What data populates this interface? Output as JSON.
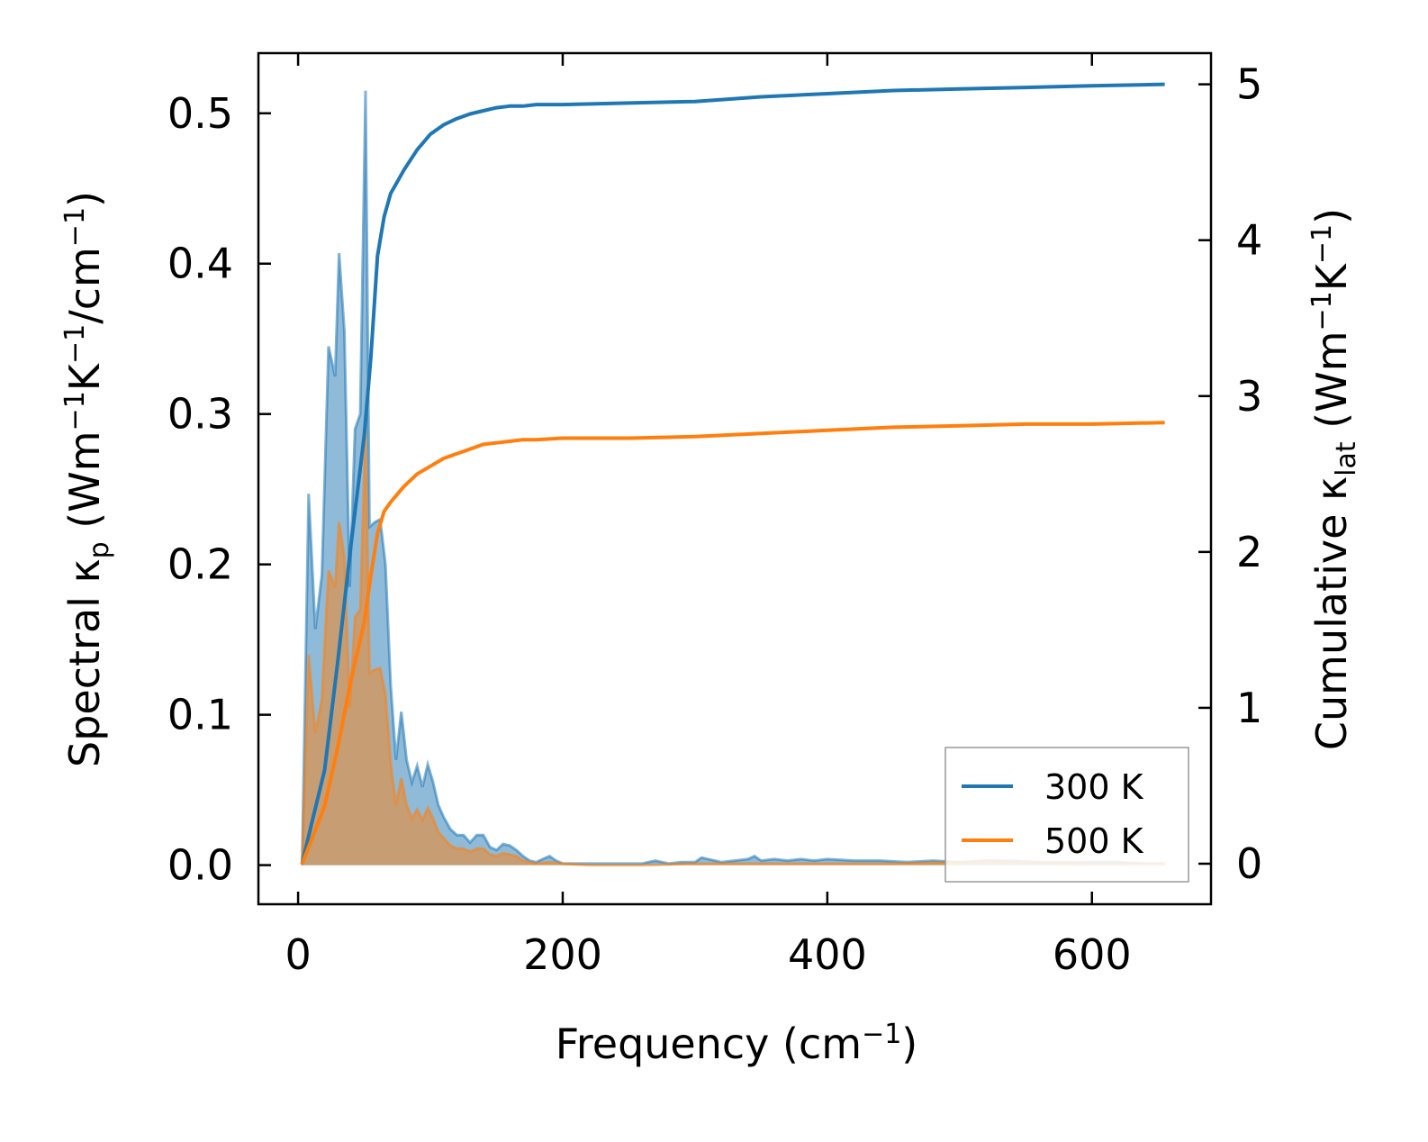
{
  "chart_data": {
    "type": "line",
    "title": "",
    "xlabel": {
      "text": "Frequency (cm",
      "sup": "−1",
      "tail": ")"
    },
    "ylabel_left": {
      "pre": "Spectral κ",
      "sub": "p",
      "mid1": " (Wm",
      "sup1": "−1",
      "mid2": "K",
      "sup2": "−1",
      "mid3": "/cm",
      "sup3": "−1",
      "tail": ")"
    },
    "ylabel_right": {
      "pre": "Cumulative κ",
      "sub": "lat",
      "mid1": " (Wm",
      "sup1": "−1",
      "mid2": "K",
      "sup2": "−1",
      "tail": ")"
    },
    "xlim": [
      -30,
      690
    ],
    "ylim_left": [
      -0.026,
      0.54
    ],
    "ylim_right": [
      -0.26,
      5.2
    ],
    "xticks": [
      0,
      200,
      400,
      600
    ],
    "xtick_labels": [
      "0",
      "200",
      "400",
      "600"
    ],
    "yticks_left": [
      0.0,
      0.1,
      0.2,
      0.3,
      0.4,
      0.5
    ],
    "ytick_labels_left": [
      "0.0",
      "0.1",
      "0.2",
      "0.3",
      "0.4",
      "0.5"
    ],
    "yticks_right": [
      0,
      1,
      2,
      3,
      4,
      5
    ],
    "ytick_labels_right": [
      "0",
      "1",
      "2",
      "3",
      "4",
      "5"
    ],
    "legend": {
      "placement": "lower-right",
      "entries": [
        "300 K",
        "500 K"
      ]
    },
    "colors": {
      "t300": "#1f77b4",
      "t500": "#ff7f0e",
      "fill300": "#1f77b4",
      "fill500": "#ff7f0e"
    },
    "series": [
      {
        "name": "300 K",
        "kind": "spectral",
        "axis": "left",
        "x": [
          3,
          8,
          13,
          18,
          23,
          28,
          31,
          35,
          39,
          43,
          47,
          51,
          54,
          58,
          62,
          66,
          70,
          74,
          78,
          82,
          86,
          90,
          94,
          98,
          102,
          106,
          110,
          115,
          120,
          125,
          130,
          135,
          140,
          145,
          150,
          155,
          160,
          165,
          170,
          175,
          180,
          185,
          190,
          195,
          200,
          220,
          240,
          260,
          270,
          280,
          290,
          300,
          305,
          310,
          320,
          330,
          340,
          345,
          350,
          360,
          370,
          380,
          390,
          400,
          420,
          440,
          460,
          480,
          500,
          520,
          540,
          560,
          580,
          600,
          620,
          640,
          655
        ],
        "y": [
          0,
          0.247,
          0.157,
          0.193,
          0.345,
          0.325,
          0.407,
          0.355,
          0.185,
          0.29,
          0.3,
          0.515,
          0.225,
          0.228,
          0.23,
          0.2,
          0.12,
          0.07,
          0.102,
          0.07,
          0.055,
          0.066,
          0.052,
          0.067,
          0.055,
          0.04,
          0.032,
          0.024,
          0.02,
          0.02,
          0.015,
          0.02,
          0.02,
          0.012,
          0.01,
          0.014,
          0.013,
          0.01,
          0.006,
          0.003,
          0.002,
          0.004,
          0.006,
          0.003,
          0.001,
          0.001,
          0.001,
          0.001,
          0.003,
          0.001,
          0.002,
          0.002,
          0.005,
          0.004,
          0.002,
          0.003,
          0.004,
          0.006,
          0.003,
          0.004,
          0.003,
          0.004,
          0.003,
          0.004,
          0.003,
          0.003,
          0.002,
          0.003,
          0.002,
          0.003,
          0.003,
          0.002,
          0.002,
          0.002,
          0.002,
          0.001,
          0.001
        ]
      },
      {
        "name": "500 K",
        "kind": "spectral",
        "axis": "left",
        "x": [
          3,
          8,
          13,
          18,
          23,
          28,
          31,
          35,
          39,
          43,
          47,
          51,
          54,
          58,
          62,
          66,
          70,
          74,
          78,
          82,
          86,
          90,
          94,
          98,
          102,
          106,
          110,
          115,
          120,
          125,
          130,
          135,
          140,
          145,
          150,
          155,
          160,
          165,
          170,
          175,
          180,
          190,
          200,
          220,
          260,
          300,
          350,
          400,
          450,
          500,
          520,
          540,
          560,
          600,
          655
        ],
        "y": [
          0,
          0.14,
          0.088,
          0.11,
          0.196,
          0.185,
          0.228,
          0.205,
          0.105,
          0.165,
          0.17,
          0.29,
          0.128,
          0.13,
          0.131,
          0.114,
          0.068,
          0.04,
          0.058,
          0.04,
          0.031,
          0.037,
          0.03,
          0.038,
          0.031,
          0.022,
          0.018,
          0.013,
          0.011,
          0.011,
          0.009,
          0.011,
          0.011,
          0.007,
          0.006,
          0.008,
          0.007,
          0.006,
          0.003,
          0.002,
          0.001,
          0.002,
          0.001,
          0.0,
          0.0,
          0.001,
          0.001,
          0.001,
          0.001,
          0.002,
          0.003,
          0.002,
          0.002,
          0.001,
          0.001
        ]
      },
      {
        "name": "300 K",
        "kind": "cumulative",
        "axis": "right",
        "x": [
          3,
          10,
          20,
          30,
          40,
          50,
          55,
          60,
          65,
          70,
          80,
          90,
          100,
          110,
          120,
          130,
          140,
          150,
          160,
          170,
          180,
          200,
          250,
          300,
          350,
          400,
          450,
          500,
          550,
          600,
          655
        ],
        "y": [
          0,
          0.25,
          0.6,
          1.3,
          2.05,
          2.75,
          3.25,
          3.9,
          4.15,
          4.3,
          4.45,
          4.58,
          4.68,
          4.74,
          4.78,
          4.81,
          4.83,
          4.85,
          4.86,
          4.86,
          4.87,
          4.87,
          4.88,
          4.89,
          4.92,
          4.94,
          4.96,
          4.97,
          4.98,
          4.99,
          5.0
        ]
      },
      {
        "name": "500 K",
        "kind": "cumulative",
        "axis": "right",
        "x": [
          3,
          10,
          20,
          30,
          40,
          50,
          55,
          60,
          65,
          70,
          80,
          90,
          100,
          110,
          120,
          130,
          140,
          150,
          160,
          170,
          180,
          200,
          250,
          300,
          350,
          400,
          450,
          500,
          550,
          600,
          655
        ],
        "y": [
          0,
          0.15,
          0.37,
          0.75,
          1.18,
          1.55,
          1.85,
          2.12,
          2.26,
          2.32,
          2.42,
          2.5,
          2.55,
          2.6,
          2.63,
          2.66,
          2.69,
          2.7,
          2.71,
          2.72,
          2.72,
          2.73,
          2.73,
          2.74,
          2.76,
          2.78,
          2.8,
          2.81,
          2.82,
          2.82,
          2.83
        ]
      }
    ]
  }
}
